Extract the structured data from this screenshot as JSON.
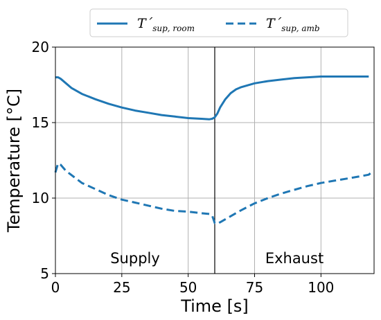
{
  "chart_data": {
    "type": "line",
    "xlabel": "Time [s]",
    "ylabel": "Temperature [°C]",
    "xlim": [
      0,
      120
    ],
    "ylim": [
      5,
      20
    ],
    "xticks": [
      0,
      25,
      50,
      75,
      100
    ],
    "yticks": [
      5,
      10,
      15,
      20
    ],
    "grid": true,
    "legend_position": "top-center",
    "colors": {
      "series": "#1f77b4"
    },
    "vline_x": 60,
    "regions": [
      {
        "label": "Supply",
        "x": 30,
        "y": 6.0
      },
      {
        "label": "Exhaust",
        "x": 90,
        "y": 6.0
      }
    ],
    "series": [
      {
        "name": "T´sup,room",
        "name_main": "T´",
        "name_sub": "sup, room",
        "style": "solid",
        "x": [
          0,
          1,
          2,
          4,
          6,
          10,
          15,
          20,
          25,
          30,
          35,
          40,
          45,
          50,
          55,
          58,
          59,
          60,
          61,
          62,
          64,
          66,
          68,
          70,
          75,
          80,
          85,
          90,
          95,
          100,
          105,
          110,
          115,
          118
        ],
        "y": [
          18.0,
          18.0,
          17.9,
          17.6,
          17.3,
          16.9,
          16.55,
          16.25,
          16.0,
          15.8,
          15.65,
          15.5,
          15.4,
          15.3,
          15.25,
          15.22,
          15.25,
          15.35,
          15.6,
          16.0,
          16.55,
          16.95,
          17.2,
          17.35,
          17.6,
          17.75,
          17.85,
          17.95,
          18.0,
          18.05,
          18.05,
          18.05,
          18.05,
          18.05
        ]
      },
      {
        "name": "T´sup,amb",
        "name_main": "T´",
        "name_sub": "sup, amb",
        "style": "dashed",
        "x": [
          0,
          1,
          2,
          4,
          7,
          10,
          15,
          20,
          25,
          30,
          35,
          40,
          45,
          50,
          55,
          58,
          59,
          60,
          61,
          62,
          65,
          70,
          75,
          80,
          85,
          90,
          95,
          100,
          105,
          110,
          115,
          118,
          119
        ],
        "y": [
          11.7,
          12.3,
          12.2,
          11.8,
          11.4,
          11.0,
          10.6,
          10.2,
          9.9,
          9.7,
          9.5,
          9.3,
          9.15,
          9.1,
          9.0,
          8.95,
          8.85,
          8.35,
          8.3,
          8.4,
          8.7,
          9.2,
          9.65,
          10.0,
          10.3,
          10.55,
          10.8,
          11.0,
          11.15,
          11.3,
          11.45,
          11.55,
          11.7
        ]
      }
    ]
  }
}
